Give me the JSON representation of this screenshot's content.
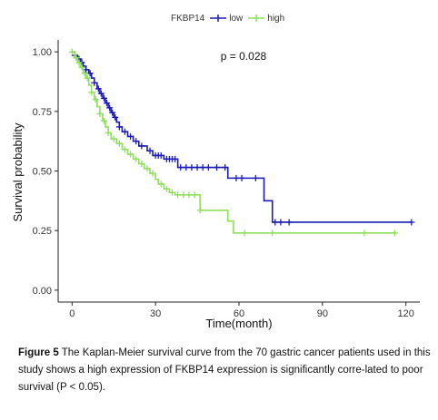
{
  "chart_data": {
    "type": "line",
    "title": "",
    "xlabel": "Time(month)",
    "ylabel": "Survival probability",
    "xlim": [
      -5,
      125
    ],
    "ylim": [
      -0.05,
      1.05
    ],
    "xticks": [
      "0",
      "30",
      "60",
      "90",
      "120"
    ],
    "yticks": [
      "0.00",
      "0.25",
      "0.50",
      "0.75",
      "1.00"
    ],
    "grid": false,
    "legend_title": "FKBP14",
    "legend_position": "top",
    "annotation": "p = 0.028",
    "series": [
      {
        "name": "low",
        "color": "#1a1ab8",
        "steps": [
          [
            0,
            1.0
          ],
          [
            1,
            0.985
          ],
          [
            2,
            0.97
          ],
          [
            3,
            0.955
          ],
          [
            4,
            0.94
          ],
          [
            5,
            0.925
          ],
          [
            6,
            0.91
          ],
          [
            7,
            0.89
          ],
          [
            8,
            0.87
          ],
          [
            9,
            0.845
          ],
          [
            10,
            0.825
          ],
          [
            11,
            0.805
          ],
          [
            12,
            0.785
          ],
          [
            13,
            0.765
          ],
          [
            14,
            0.745
          ],
          [
            15,
            0.725
          ],
          [
            16,
            0.705
          ],
          [
            17,
            0.685
          ],
          [
            18,
            0.665
          ],
          [
            20,
            0.645
          ],
          [
            22,
            0.625
          ],
          [
            24,
            0.605
          ],
          [
            27,
            0.585
          ],
          [
            29,
            0.565
          ],
          [
            33,
            0.55
          ],
          [
            38,
            0.515
          ],
          [
            56,
            0.47
          ],
          [
            69,
            0.375
          ],
          [
            72,
            0.285
          ],
          [
            122,
            0.285
          ]
        ],
        "censor_times": [
          1,
          2.5,
          3.5,
          5,
          6.5,
          8,
          9.5,
          10.5,
          11.5,
          12.5,
          13.5,
          14.5,
          15.5,
          17,
          19,
          21,
          23,
          25,
          28,
          30,
          31,
          32,
          34,
          35,
          36,
          37,
          39,
          41,
          43,
          45,
          47,
          49,
          52,
          55,
          59,
          61,
          66,
          73,
          75,
          78,
          122
        ]
      },
      {
        "name": "high",
        "color": "#8ee05a",
        "steps": [
          [
            0,
            1.0
          ],
          [
            1,
            0.975
          ],
          [
            2,
            0.955
          ],
          [
            3,
            0.935
          ],
          [
            4,
            0.91
          ],
          [
            5,
            0.89
          ],
          [
            6,
            0.86
          ],
          [
            7,
            0.83
          ],
          [
            8,
            0.8
          ],
          [
            9,
            0.77
          ],
          [
            10,
            0.74
          ],
          [
            11,
            0.71
          ],
          [
            12,
            0.685
          ],
          [
            13,
            0.66
          ],
          [
            14,
            0.635
          ],
          [
            16,
            0.615
          ],
          [
            18,
            0.59
          ],
          [
            20,
            0.57
          ],
          [
            22,
            0.55
          ],
          [
            24,
            0.53
          ],
          [
            26,
            0.51
          ],
          [
            28,
            0.49
          ],
          [
            30,
            0.465
          ],
          [
            31,
            0.445
          ],
          [
            33,
            0.425
          ],
          [
            35,
            0.41
          ],
          [
            37,
            0.4
          ],
          [
            46,
            0.335
          ],
          [
            56,
            0.29
          ],
          [
            58,
            0.24
          ],
          [
            116,
            0.24
          ]
        ],
        "censor_times": [
          0,
          1.5,
          2.5,
          3.5,
          4.5,
          5.5,
          7,
          8.5,
          10,
          11.5,
          13,
          15,
          17,
          19,
          21,
          23,
          25,
          27,
          29,
          32,
          34,
          36,
          38,
          40,
          42,
          44,
          46,
          62,
          72,
          105,
          116
        ]
      }
    ]
  },
  "caption": {
    "label": "Figure 5",
    "text": " The Kaplan-Meier survival curve from the 70 gastric cancer patients used in this study shows a high expression of FKBP14 expression is significantly corre-lated to poor survival (P < 0.05)."
  }
}
